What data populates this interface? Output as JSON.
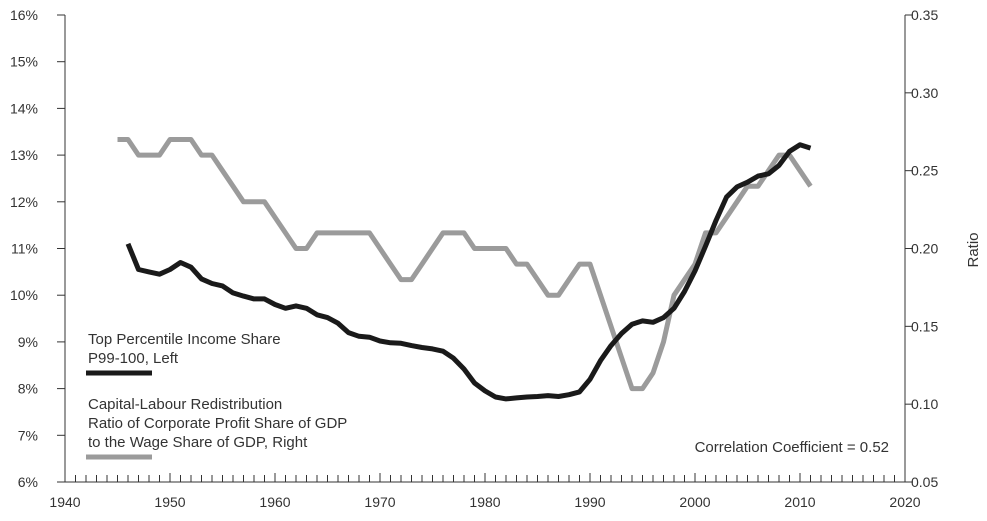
{
  "chart_data": {
    "type": "line",
    "x_ticks": [
      "1940",
      "1950",
      "1960",
      "1970",
      "1980",
      "1990",
      "2000",
      "2010",
      "2020"
    ],
    "xlim": [
      1940,
      2020
    ],
    "left_axis": {
      "ylim": [
        6,
        16
      ],
      "ticks": [
        "6%",
        "7%",
        "8%",
        "9%",
        "10%",
        "11%",
        "12%",
        "13%",
        "14%",
        "15%",
        "16%"
      ]
    },
    "right_axis": {
      "label": "Ratio",
      "ylim": [
        0.05,
        0.35
      ],
      "ticks": [
        "0.05",
        "0.10",
        "0.15",
        "0.20",
        "0.25",
        "0.30",
        "0.35"
      ]
    },
    "series": [
      {
        "name": "Top Percentile Income Share P99-100, Left",
        "legend_lines": [
          "Top Percentile Income Share",
          "P99-100, Left"
        ],
        "axis": "left",
        "color": "#1a1a1a",
        "x": [
          1946,
          1947,
          1948,
          1949,
          1950,
          1951,
          1952,
          1953,
          1954,
          1955,
          1956,
          1957,
          1958,
          1959,
          1960,
          1961,
          1962,
          1963,
          1964,
          1965,
          1966,
          1967,
          1968,
          1969,
          1970,
          1971,
          1972,
          1973,
          1974,
          1975,
          1976,
          1977,
          1978,
          1979,
          1980,
          1981,
          1982,
          1983,
          1984,
          1985,
          1986,
          1987,
          1988,
          1989,
          1990,
          1991,
          1992,
          1993,
          1994,
          1995,
          1996,
          1997,
          1998,
          1999,
          2000,
          2001,
          2002,
          2003,
          2004,
          2005,
          2006,
          2007,
          2008,
          2009,
          2010,
          2011
        ],
        "y": [
          11.1,
          10.55,
          10.5,
          10.45,
          10.55,
          10.7,
          10.6,
          10.35,
          10.25,
          10.2,
          10.05,
          9.98,
          9.92,
          9.92,
          9.8,
          9.72,
          9.77,
          9.72,
          9.58,
          9.52,
          9.4,
          9.2,
          9.12,
          9.1,
          9.02,
          8.98,
          8.97,
          8.92,
          8.88,
          8.85,
          8.8,
          8.65,
          8.42,
          8.12,
          7.95,
          7.82,
          7.78,
          7.8,
          7.82,
          7.83,
          7.85,
          7.83,
          7.87,
          7.93,
          8.2,
          8.6,
          8.92,
          9.18,
          9.38,
          9.45,
          9.42,
          9.52,
          9.72,
          10.08,
          10.52,
          11.05,
          11.6,
          12.1,
          12.32,
          12.42,
          12.55,
          12.6,
          12.78,
          13.08,
          13.22,
          13.15
        ]
      },
      {
        "name": "Capital-Labour Redistribution Ratio of Corporate Profit Share of GDP to the Wage Share of GDP, Right",
        "legend_lines": [
          "Capital-Labour Redistribution",
          "Ratio of Corporate Profit Share of GDP",
          "to the Wage Share of GDP, Right"
        ],
        "axis": "right",
        "color": "#9b9b9b",
        "x": [
          1945,
          1946,
          1947,
          1948,
          1949,
          1950,
          1951,
          1952,
          1953,
          1954,
          1955,
          1956,
          1957,
          1958,
          1959,
          1960,
          1961,
          1962,
          1963,
          1964,
          1965,
          1966,
          1967,
          1968,
          1969,
          1970,
          1971,
          1972,
          1973,
          1974,
          1975,
          1976,
          1977,
          1978,
          1979,
          1980,
          1981,
          1982,
          1983,
          1984,
          1985,
          1986,
          1987,
          1988,
          1989,
          1990,
          1991,
          1992,
          1993,
          1994,
          1995,
          1996,
          1997,
          1998,
          1999,
          2000,
          2001,
          2002,
          2003,
          2004,
          2005,
          2006,
          2007,
          2008,
          2009,
          2010,
          2011
        ],
        "y": [
          0.27,
          0.27,
          0.26,
          0.26,
          0.26,
          0.27,
          0.27,
          0.27,
          0.26,
          0.26,
          0.25,
          0.24,
          0.23,
          0.23,
          0.23,
          0.22,
          0.21,
          0.2,
          0.2,
          0.21,
          0.21,
          0.21,
          0.21,
          0.21,
          0.21,
          0.2,
          0.19,
          0.18,
          0.18,
          0.19,
          0.2,
          0.21,
          0.21,
          0.21,
          0.2,
          0.2,
          0.2,
          0.2,
          0.19,
          0.19,
          0.18,
          0.17,
          0.17,
          0.18,
          0.19,
          0.19,
          0.17,
          0.15,
          0.13,
          0.11,
          0.11,
          0.12,
          0.14,
          0.17,
          0.18,
          0.19,
          0.21,
          0.21,
          0.22,
          0.23,
          0.24,
          0.24,
          0.25,
          0.26,
          0.26,
          0.25,
          0.24
        ]
      }
    ],
    "annotation": "Correlation Coefficient = 0.52",
    "grid": false
  }
}
